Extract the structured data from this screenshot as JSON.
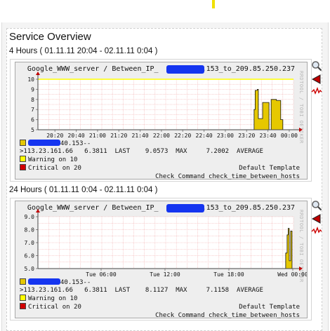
{
  "section_title": "Service Overview",
  "graphs": [
    {
      "period": "4 Hours ( 01.11.11 20:04 - 02.11.11 0:04 )",
      "title_left": "Google_WWW_server / Between_IP_",
      "title_right": "40.153_to_209.85.250.237",
      "side_text": "RRDTOOL / TOBI OETIKER",
      "legend": {
        "series_left": "",
        "series_right": "40.153-->113.23.161.66",
        "last_value": "6.3811",
        "last_label": "LAST",
        "max_value": "9.0573",
        "max_label": "MAX",
        "avg_value": "7.2002",
        "avg_label": "AVERAGE",
        "warning": "Warning on  10",
        "critical": "Critical on 20"
      },
      "template": "Default Template",
      "command": "Check Command check_time_between_hosts",
      "chart_data": {
        "type": "area",
        "ylim": [
          5,
          10
        ],
        "yticks": [
          "10",
          "9",
          "8",
          "7",
          "6",
          "5"
        ],
        "xticks": [
          "20:20",
          "20:40",
          "21:00",
          "21:20",
          "21:40",
          "22:00",
          "22:20",
          "22:40",
          "23:00",
          "23:20",
          "23:40",
          "00:00"
        ],
        "warning_threshold": 10,
        "series": [
          {
            "x": [
              "23:27",
              "23:28",
              "23:30",
              "23:31",
              "23:33",
              "23:35",
              "23:38",
              "23:41",
              "23:43",
              "23:45",
              "23:48",
              "23:50",
              "23:52",
              "23:54"
            ],
            "values": [
              7.0,
              8.9,
              9.0,
              6.1,
              6.1,
              7.7,
              7.7,
              5.0,
              8.0,
              8.0,
              7.9,
              7.9,
              6.0,
              5.0
            ]
          }
        ]
      }
    },
    {
      "period": "24 Hours ( 01.11.11 0:04 - 02.11.11 0:04 )",
      "title_left": "Google_WWW_server / Between_IP_",
      "title_right": "40.153_to_209.85.250.237",
      "side_text": "RRDTOOL / TOBI OETIKER",
      "legend": {
        "series_left": "",
        "series_right": "40.153-->113.23.161.66",
        "last_value": "6.3811",
        "last_label": "LAST",
        "max_value": "8.1127",
        "max_label": "MAX",
        "avg_value": "7.1158",
        "avg_label": "AVERAGE",
        "warning": "Warning on  10",
        "critical": "Critical on 20"
      },
      "template": "Default Template",
      "command": "Check Command check_time_between_hosts",
      "chart_data": {
        "type": "area",
        "ylim": [
          5,
          9
        ],
        "yticks": [
          "9.0",
          "8.0",
          "7.0",
          "6.0",
          "5.0"
        ],
        "xticks": [
          "Tue 06:00",
          "Tue 12:00",
          "Tue 18:00",
          "Wed 00:00"
        ],
        "series": [
          {
            "x": [
              "Tue 23:20",
              "Tue 23:28",
              "Tue 23:34",
              "Tue 23:40",
              "Tue 23:48",
              "Tue 23:56"
            ],
            "values": [
              6.2,
              7.6,
              8.1,
              5.6,
              7.9,
              6.4
            ]
          }
        ]
      }
    }
  ],
  "colors": {
    "area": "#e6c800",
    "area_edge": "#111111",
    "warning": "#ffff00",
    "critical": "#d10000",
    "grid": "#f0a0a0",
    "redaction": "#1535f0"
  },
  "icons": [
    "magnifier-icon",
    "red-triangle-icon",
    "red-squiggle-icon"
  ],
  "footer_partial": ""
}
